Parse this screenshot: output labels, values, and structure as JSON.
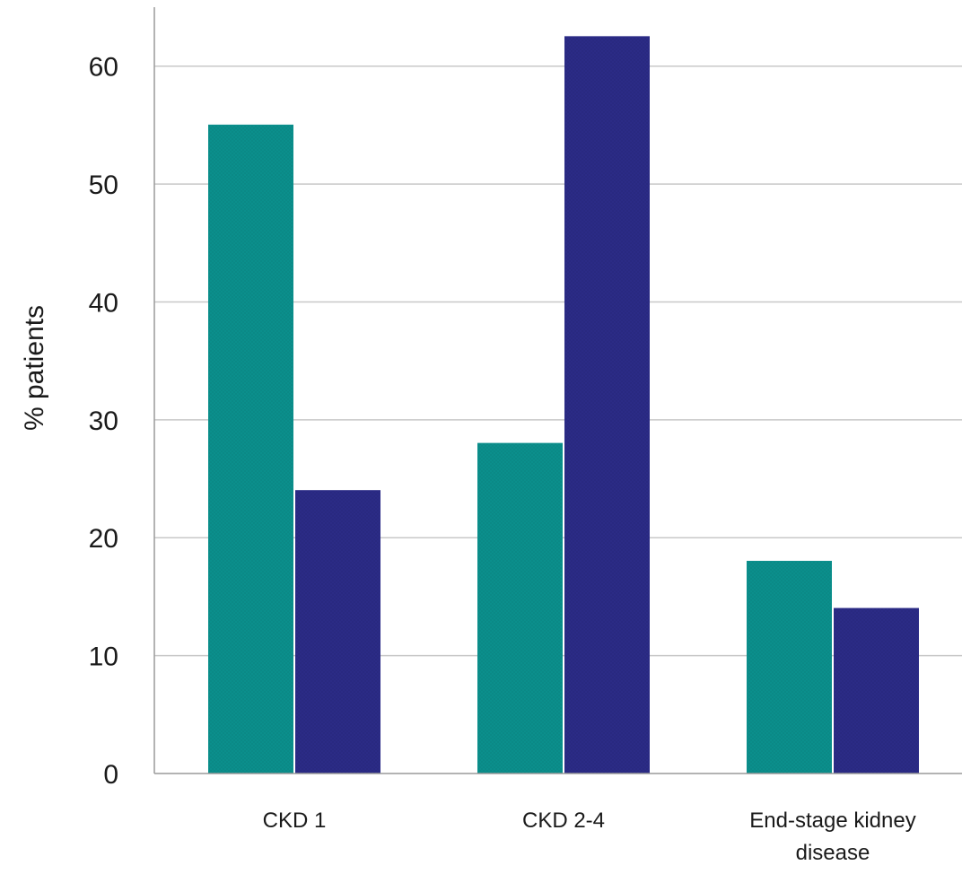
{
  "chart_data": {
    "type": "bar",
    "title": "",
    "xlabel": "",
    "ylabel": "% patients",
    "ylim": [
      0,
      65
    ],
    "yticks": [
      0,
      10,
      20,
      30,
      40,
      50,
      60
    ],
    "grid": true,
    "categories": [
      [
        "CKD 1"
      ],
      [
        "CKD 2-4"
      ],
      [
        "End-stage kidney",
        "disease"
      ]
    ],
    "series": [
      {
        "values": [
          55,
          28,
          18
        ],
        "color": "#0b8f8c"
      },
      {
        "values": [
          24,
          62.5,
          14
        ],
        "color": "#2b2b86"
      }
    ]
  }
}
